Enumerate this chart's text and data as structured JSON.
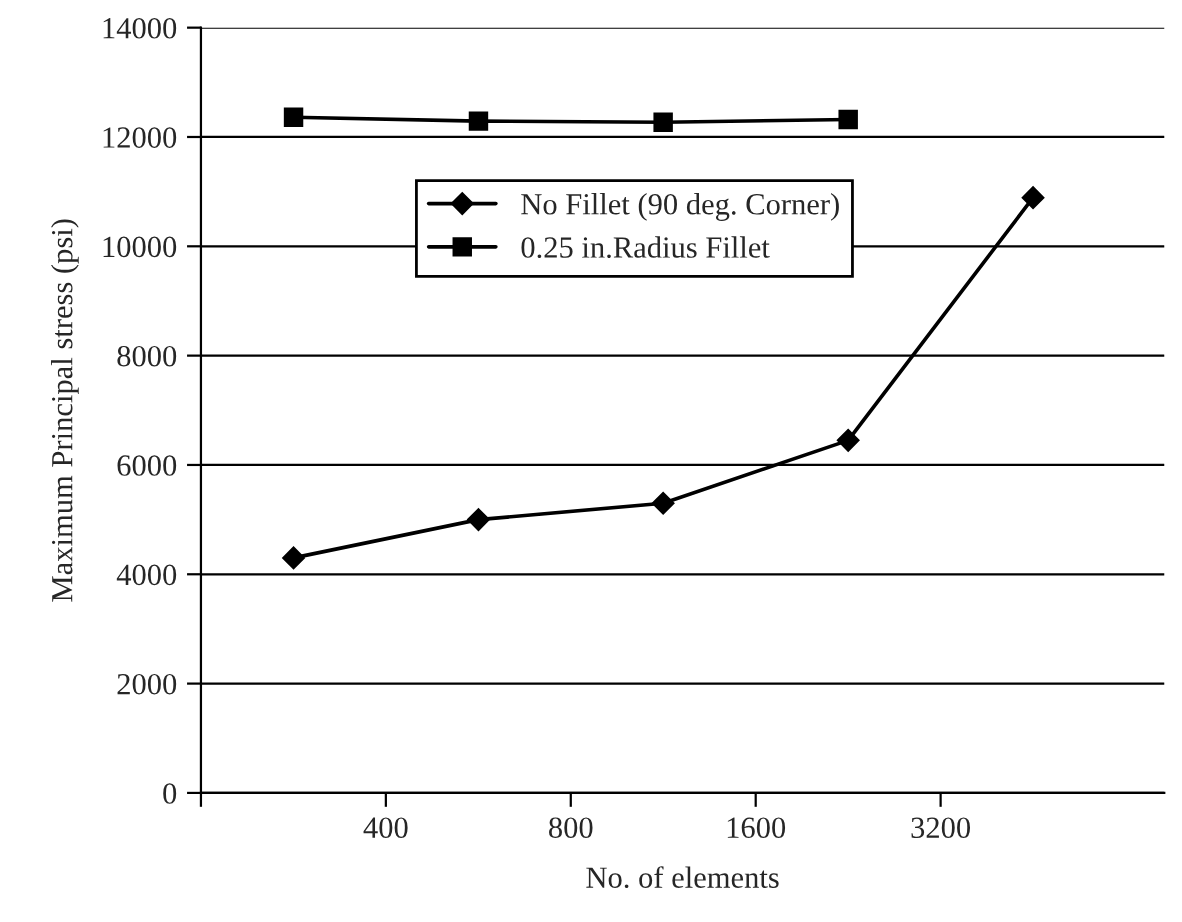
{
  "chart_data": {
    "type": "line",
    "xlabel": "No. of elements",
    "ylabel": "Maximum Principal stress (psi)",
    "log": "x",
    "xlim": [
      200,
      7400
    ],
    "xticks": [
      {
        "value": 200,
        "label": null
      },
      400,
      800,
      1600,
      3200
    ],
    "ylim": [
      0,
      14000
    ],
    "yticks": [
      0,
      2000,
      4000,
      6000,
      8000,
      10000,
      12000,
      14000
    ],
    "grid": "y",
    "legend": "top",
    "series": [
      {
        "name": "No Fillet (90 deg. Corner)",
        "color": "#000000",
        "marker": "diamond",
        "x": [
          283,
          566,
          1131,
          2263,
          4525
        ],
        "values": [
          4300,
          5000,
          5300,
          6450,
          10890
        ]
      },
      {
        "name": "0.25 in.Radius Fillet",
        "color": "#000000",
        "marker": "square",
        "x": [
          283,
          566,
          1131,
          2263
        ],
        "values": [
          12360,
          12290,
          12270,
          12320
        ]
      }
    ]
  }
}
